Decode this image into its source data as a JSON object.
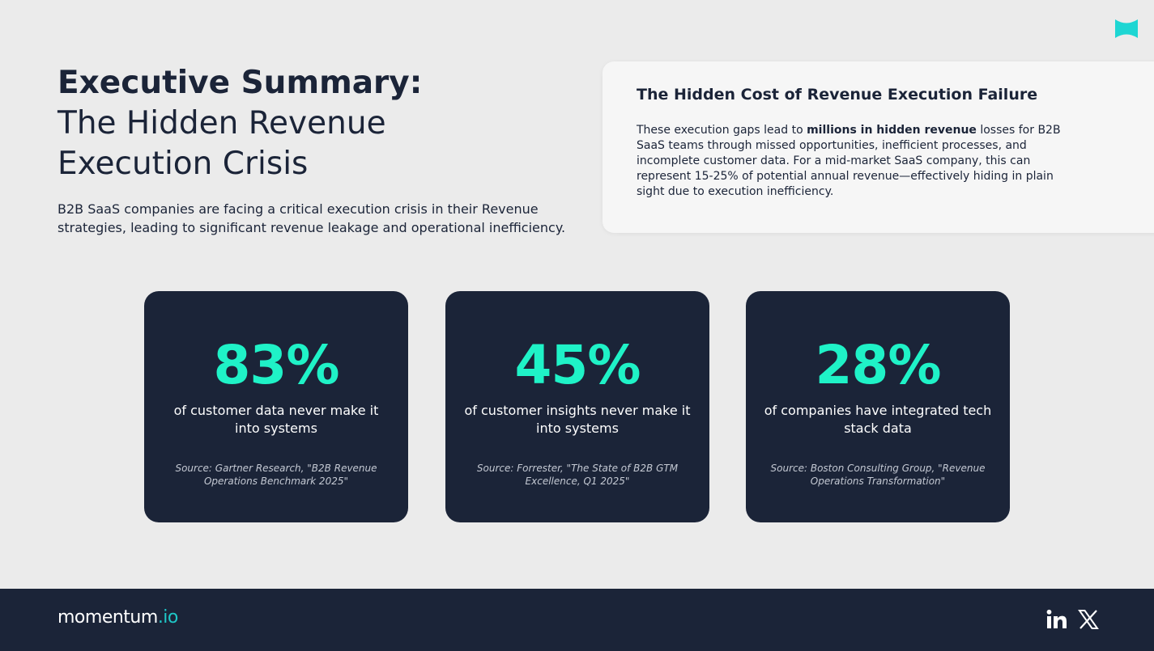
{
  "header": {
    "title_bold": "Executive Summary:",
    "title_line2": "The Hidden Revenue",
    "title_line3": "Execution Crisis",
    "intro": "B2B SaaS companies are facing a critical execution crisis in their Revenue strategies, leading to significant revenue leakage and operational inefficiency."
  },
  "callout": {
    "title": "The Hidden Cost of Revenue Execution Failure",
    "body_before": "These execution gaps lead to ",
    "body_bold": "millions in hidden revenue",
    "body_after": " losses for B2B SaaS teams through missed opportunities, inefficient processes, and incomplete customer data. For a mid-market SaaS company, this can represent 15-25% of potential annual revenue—effectively hiding in plain sight due to execution inefficiency."
  },
  "stats": [
    {
      "value": "83%",
      "label": "of customer data never make it into systems",
      "source": "Source: Gartner Research, \"B2B Revenue Operations Benchmark 2025\""
    },
    {
      "value": "45%",
      "label": "of customer insights never make it into systems",
      "source": "Source: Forrester, \"The State of B2B GTM Excellence, Q1 2025\""
    },
    {
      "value": "28%",
      "label": "of companies have integrated tech stack data",
      "source": "Source: Boston Consulting Group, \"Revenue Operations Transformation\""
    }
  ],
  "footer": {
    "brand_name": "momentum",
    "brand_tld": ".io",
    "social_icons": [
      "linkedin-icon",
      "x-icon"
    ]
  },
  "colors": {
    "navy": "#1b2438",
    "accent": "#1ff2c7",
    "logo_teal": "#1ed6d3"
  }
}
